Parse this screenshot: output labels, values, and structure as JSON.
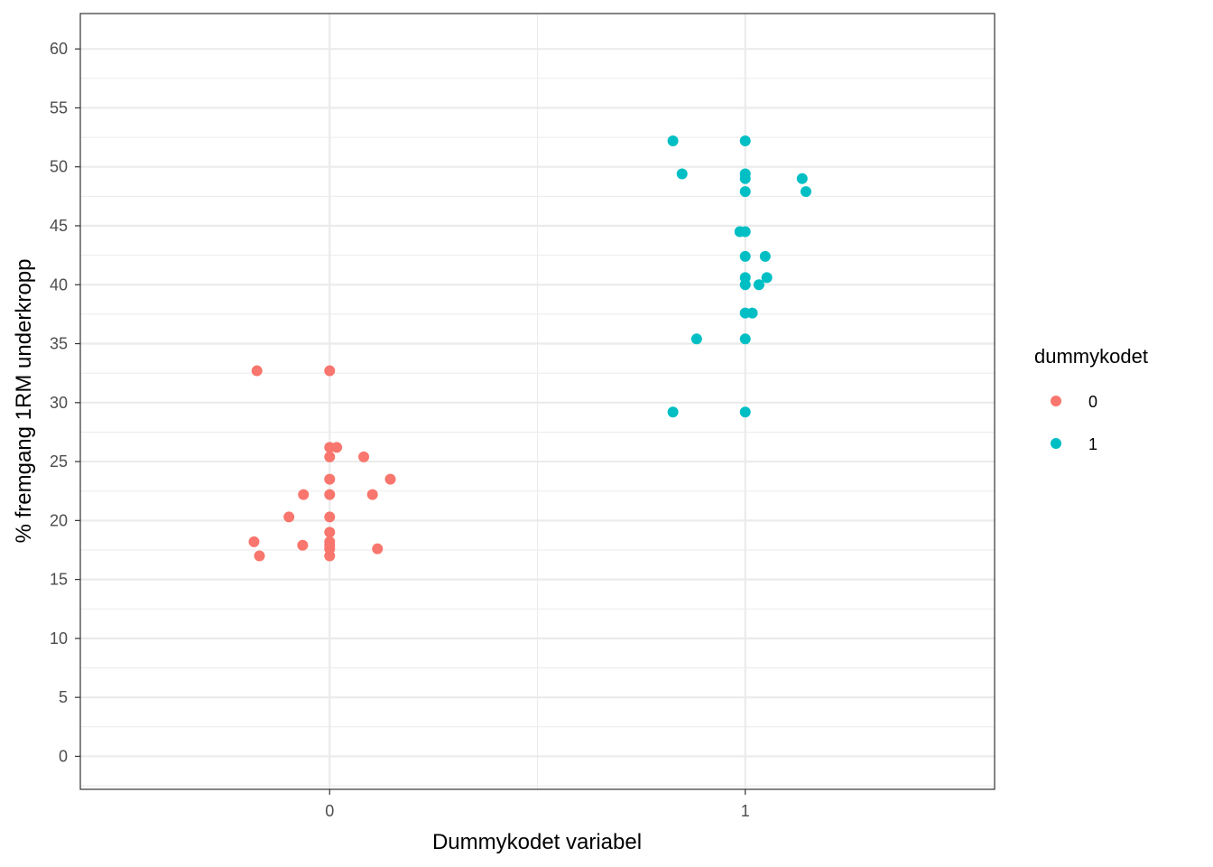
{
  "chart_data": {
    "type": "scatter",
    "title": "",
    "xlabel": "Dummykodet variabel",
    "ylabel": "% fremgang 1RM underkropp",
    "xlim": [
      -0.6,
      1.6
    ],
    "ylim": [
      -2.8,
      63
    ],
    "x_ticks": [
      0,
      1
    ],
    "x_tick_labels": [
      "0",
      "1"
    ],
    "y_ticks": [
      0,
      5,
      10,
      15,
      20,
      25,
      30,
      35,
      40,
      45,
      50,
      55,
      60
    ],
    "y_tick_labels": [
      "0",
      "5",
      "10",
      "15",
      "20",
      "25",
      "30",
      "35",
      "40",
      "45",
      "50",
      "55",
      "60"
    ],
    "grid": true,
    "legend": {
      "title": "dummykodet",
      "position": "right",
      "entries": [
        {
          "label": "0",
          "color": "#F8766D"
        },
        {
          "label": "1",
          "color": "#00BFC4"
        }
      ]
    },
    "series": [
      {
        "name": "0",
        "color": "#F8766D",
        "points": [
          [
            -0.175,
            32.7
          ],
          [
            0.0,
            32.7
          ],
          [
            0.0,
            26.2
          ],
          [
            0.017,
            26.2
          ],
          [
            0.0,
            25.4
          ],
          [
            0.082,
            25.4
          ],
          [
            0.0,
            23.5
          ],
          [
            0.146,
            23.5
          ],
          [
            -0.063,
            22.2
          ],
          [
            0.0,
            22.2
          ],
          [
            0.103,
            22.2
          ],
          [
            -0.098,
            20.3
          ],
          [
            0.0,
            20.3
          ],
          [
            0.0,
            19.0
          ],
          [
            -0.182,
            18.2
          ],
          [
            0.0,
            18.2
          ],
          [
            -0.065,
            17.9
          ],
          [
            0.0,
            17.9
          ],
          [
            0.0,
            17.6
          ],
          [
            0.115,
            17.6
          ],
          [
            -0.169,
            17.0
          ],
          [
            0.0,
            17.0
          ]
        ]
      },
      {
        "name": "1",
        "color": "#00BFC4",
        "points": [
          [
            0.826,
            52.2
          ],
          [
            1.0,
            52.2
          ],
          [
            0.848,
            49.4
          ],
          [
            1.0,
            49.4
          ],
          [
            1.0,
            49.0
          ],
          [
            1.137,
            49.0
          ],
          [
            1.0,
            47.9
          ],
          [
            1.146,
            47.9
          ],
          [
            0.987,
            44.5
          ],
          [
            1.0,
            44.5
          ],
          [
            1.0,
            42.4
          ],
          [
            1.048,
            42.4
          ],
          [
            1.0,
            40.6
          ],
          [
            1.052,
            40.6
          ],
          [
            1.0,
            40.0
          ],
          [
            1.033,
            40.0
          ],
          [
            1.0,
            37.6
          ],
          [
            1.017,
            37.6
          ],
          [
            0.883,
            35.4
          ],
          [
            1.0,
            35.4
          ],
          [
            0.826,
            29.2
          ],
          [
            1.0,
            29.2
          ]
        ]
      }
    ]
  }
}
